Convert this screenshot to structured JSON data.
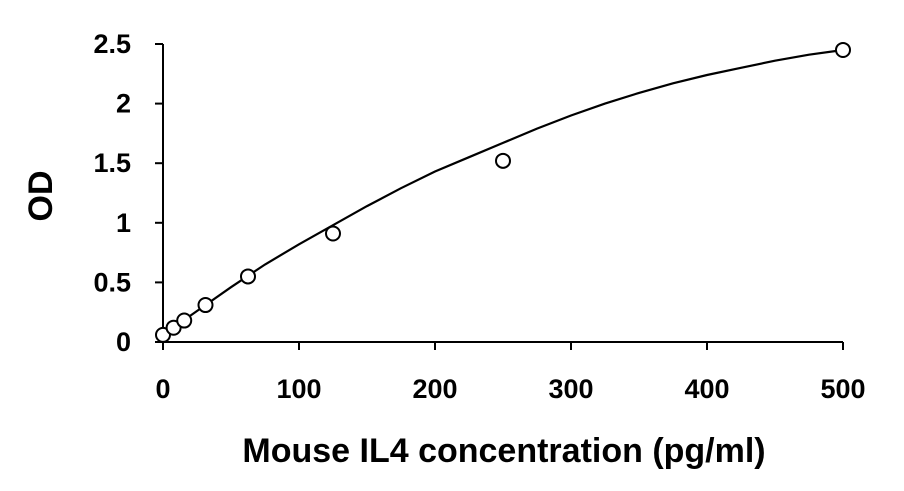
{
  "chart_data": {
    "type": "scatter",
    "title": "",
    "xlabel": "Mouse IL4 concentration (pg/ml)",
    "ylabel": "OD",
    "xlim": [
      0,
      500
    ],
    "ylim": [
      0,
      2.5
    ],
    "x_ticks": [
      0,
      100,
      200,
      300,
      400,
      500
    ],
    "y_ticks": [
      0,
      0.5,
      1,
      1.5,
      2,
      2.5
    ],
    "x_tick_labels": [
      "0",
      "100",
      "200",
      "300",
      "400",
      "500"
    ],
    "y_tick_labels": [
      "0",
      "0.5",
      "1",
      "1.5",
      "2",
      "2.5"
    ],
    "grid": false,
    "legend": "none",
    "series": [
      {
        "marker": "open-circle",
        "fit": "smooth-curve",
        "x": [
          0,
          7.8,
          15.6,
          31.25,
          62.5,
          125,
          250,
          500
        ],
        "y": [
          0.06,
          0.12,
          0.18,
          0.31,
          0.55,
          0.91,
          1.52,
          2.45
        ]
      }
    ],
    "fit_curve": {
      "x": [
        0,
        25,
        50,
        75,
        100,
        125,
        150,
        175,
        200,
        225,
        250,
        275,
        300,
        325,
        350,
        375,
        400,
        425,
        450,
        475,
        500
      ],
      "y": [
        0.06,
        0.26,
        0.46,
        0.65,
        0.82,
        0.98,
        1.14,
        1.29,
        1.43,
        1.55,
        1.67,
        1.79,
        1.9,
        2.0,
        2.09,
        2.17,
        2.24,
        2.3,
        2.36,
        2.41,
        2.45
      ]
    }
  }
}
